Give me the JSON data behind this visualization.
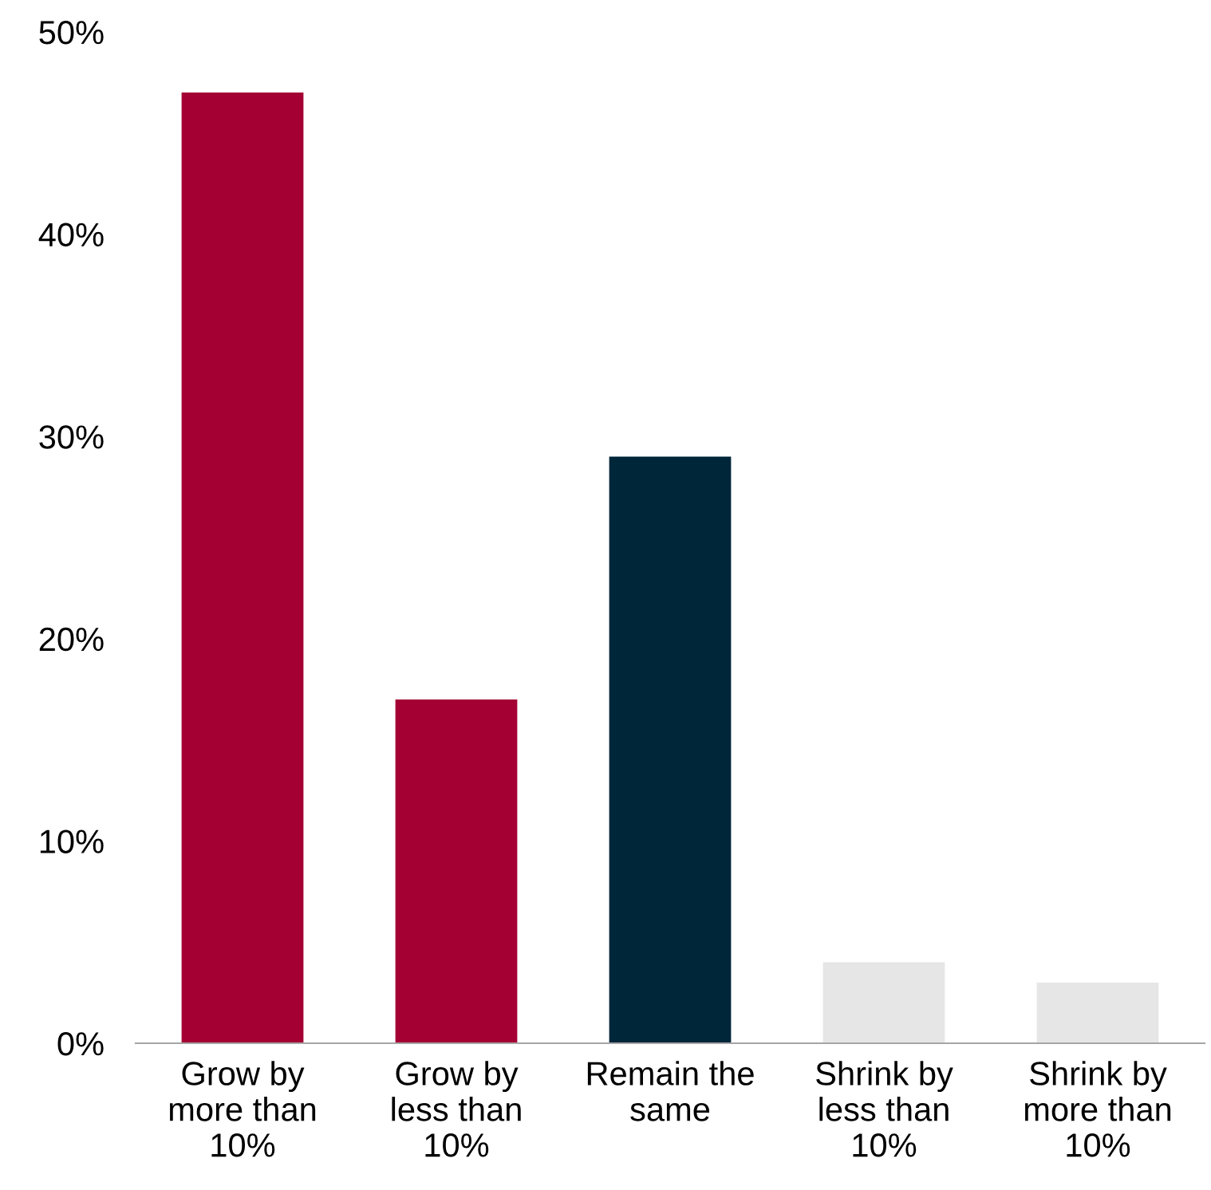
{
  "chart_data": {
    "type": "bar",
    "categories": [
      "Grow by\nmore than\n10%",
      "Grow by\nless than\n10%",
      "Remain the\nsame",
      "Shrink by\nless than\n10%",
      "Shrink by\nmore than\n10%"
    ],
    "values": [
      47,
      17,
      29,
      4,
      3
    ],
    "colors": [
      "#a50034",
      "#a50034",
      "#00263a",
      "#e6e6e6",
      "#e6e6e6"
    ],
    "ylim": [
      0,
      50
    ],
    "yticks": [
      {
        "value": 0,
        "label": "0%"
      },
      {
        "value": 10,
        "label": "10%"
      },
      {
        "value": 20,
        "label": "20%"
      },
      {
        "value": 30,
        "label": "30%"
      },
      {
        "value": 40,
        "label": "40%"
      },
      {
        "value": 50,
        "label": "50%"
      }
    ],
    "grid": false,
    "legend": false
  }
}
